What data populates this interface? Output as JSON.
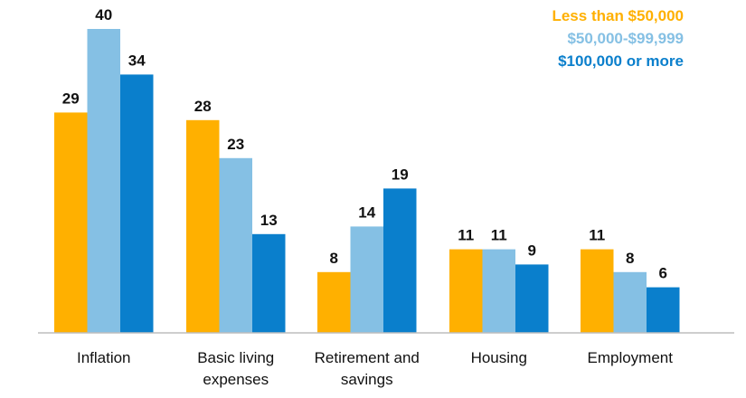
{
  "chart_data": {
    "type": "bar",
    "categories": [
      [
        "Inflation"
      ],
      [
        "Basic living",
        "expenses"
      ],
      [
        "Retirement and",
        "savings"
      ],
      [
        "Housing"
      ],
      [
        "Employment"
      ]
    ],
    "series": [
      {
        "name": "Less than $50,000",
        "color": "#FFB000",
        "values": [
          29,
          28,
          8,
          11,
          11
        ]
      },
      {
        "name": "$50,000-$99,999",
        "color": "#85C0E4",
        "values": [
          40,
          23,
          14,
          11,
          8
        ]
      },
      {
        "name": "$100,000 or more",
        "color": "#0A7FCC",
        "values": [
          34,
          13,
          19,
          9,
          6
        ]
      }
    ],
    "title": "",
    "xlabel": "",
    "ylabel": "",
    "ylim": [
      0,
      40
    ],
    "grid": false,
    "legend": "top-right",
    "data_labels": true
  }
}
